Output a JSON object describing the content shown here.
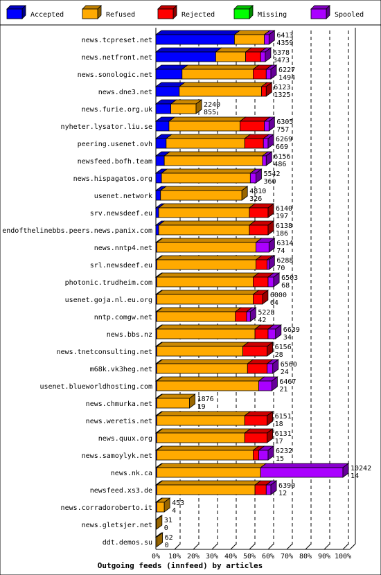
{
  "chart_data": {
    "type": "bar",
    "orientation": "horizontal",
    "stacked": true,
    "xlabel": "Outgoing feeds (innfeed) by articles",
    "xlim": [
      0,
      100
    ],
    "x_ticks": [
      "0%",
      "10%",
      "20%",
      "30%",
      "40%",
      "50%",
      "60%",
      "70%",
      "80%",
      "90%",
      "100%"
    ],
    "legend_position": "top",
    "series": [
      {
        "name": "Accepted",
        "color": "#0000ff"
      },
      {
        "name": "Refused",
        "color": "#ffaa00"
      },
      {
        "name": "Rejected",
        "color": "#ff0000"
      },
      {
        "name": "Missing",
        "color": "#00ff00"
      },
      {
        "name": "Spooled",
        "color": "#aa00ff"
      }
    ],
    "rows": [
      {
        "name": "news.tcpreset.net",
        "total": "6413",
        "accepted": "4359",
        "segs": [
          42,
          16,
          0,
          0,
          2.5
        ]
      },
      {
        "name": "news.netfront.net",
        "total": "6378",
        "accepted": "3473",
        "segs": [
          32,
          16,
          8,
          0,
          2.5
        ]
      },
      {
        "name": "news.sonologic.net",
        "total": "6227",
        "accepted": "1494",
        "segs": [
          14,
          38,
          7,
          0,
          2.5
        ]
      },
      {
        "name": "news.dne3.net",
        "total": "6123",
        "accepted": "1325",
        "segs": [
          12.5,
          44,
          2.5,
          0,
          0
        ]
      },
      {
        "name": "news.furie.org.uk",
        "total": "2240",
        "accepted": "855",
        "segs": [
          8,
          13.5,
          0,
          0,
          0
        ]
      },
      {
        "name": "nyheter.lysator.liu.se",
        "total": "6305",
        "accepted": "757",
        "segs": [
          7,
          38,
          13,
          0,
          2.5
        ]
      },
      {
        "name": "peering.usenet.ovh",
        "total": "6269",
        "accepted": "669",
        "segs": [
          5.5,
          42,
          10,
          0,
          2.5
        ]
      },
      {
        "name": "newsfeed.bofh.team",
        "total": "6156",
        "accepted": "486",
        "segs": [
          4.5,
          52.5,
          0,
          0,
          2
        ]
      },
      {
        "name": "news.hispagatos.org",
        "total": "5542",
        "accepted": "360",
        "segs": [
          3,
          47.5,
          0,
          0,
          3
        ]
      },
      {
        "name": "usenet.network",
        "total": "4810",
        "accepted": "326",
        "segs": [
          2.5,
          43.5,
          0,
          0,
          0
        ]
      },
      {
        "name": "srv.newsdeef.eu",
        "total": "6140",
        "accepted": "197",
        "segs": [
          1.5,
          48.5,
          10,
          0,
          0
        ]
      },
      {
        "name": "endofthelinebbs.peers.news.panix.com",
        "total": "6138",
        "accepted": "186",
        "segs": [
          1.5,
          48.5,
          10,
          0,
          0
        ]
      },
      {
        "name": "news.nntp4.net",
        "total": "6314",
        "accepted": "74",
        "segs": [
          0.5,
          53,
          0,
          0,
          7
        ]
      },
      {
        "name": "srl.newsdeef.eu",
        "total": "6288",
        "accepted": "70",
        "segs": [
          0.5,
          53,
          6,
          0,
          1
        ]
      },
      {
        "name": "photonic.trudheim.com",
        "total": "6503",
        "accepted": "68",
        "segs": [
          0.5,
          51.5,
          8,
          0,
          3
        ]
      },
      {
        "name": "usenet.goja.nl.eu.org",
        "total": "6000",
        "accepted": "64",
        "segs": [
          0.5,
          51.5,
          5,
          0,
          0
        ]
      },
      {
        "name": "nntp.comgw.net",
        "total": "5228",
        "accepted": "42",
        "segs": [
          0.5,
          42,
          6,
          0,
          2
        ]
      },
      {
        "name": "news.bbs.nz",
        "total": "6639",
        "accepted": "34",
        "segs": [
          0.5,
          52.5,
          7,
          0,
          4
        ]
      },
      {
        "name": "news.tnetconsulting.net",
        "total": "6156",
        "accepted": "28",
        "segs": [
          0.5,
          46,
          13,
          0,
          0
        ]
      },
      {
        "name": "m68k.vk3heg.net",
        "total": "6560",
        "accepted": "24",
        "segs": [
          0.5,
          48.5,
          10.5,
          0,
          3
        ]
      },
      {
        "name": "usenet.blueworldhosting.com",
        "total": "6467",
        "accepted": "21",
        "segs": [
          0.5,
          54.5,
          0,
          0,
          7
        ]
      },
      {
        "name": "news.chmurka.net",
        "total": "1876",
        "accepted": "19",
        "segs": [
          0.5,
          17.5,
          0,
          0,
          0
        ]
      },
      {
        "name": "news.weretis.net",
        "total": "6151",
        "accepted": "18",
        "segs": [
          0.5,
          47,
          12,
          0,
          0
        ]
      },
      {
        "name": "news.quux.org",
        "total": "6131",
        "accepted": "17",
        "segs": [
          0.5,
          47,
          12,
          0,
          0
        ]
      },
      {
        "name": "news.samoylyk.net",
        "total": "6232",
        "accepted": "15",
        "segs": [
          0.5,
          51.5,
          3,
          0,
          5
        ]
      },
      {
        "name": "news.nk.ca",
        "total": "10242",
        "accepted": "14",
        "segs": [
          0.5,
          55.5,
          0,
          0,
          44
        ]
      },
      {
        "name": "newsfeed.xs3.de",
        "total": "6390",
        "accepted": "12",
        "segs": [
          0.5,
          52.5,
          6,
          0,
          2.5
        ]
      },
      {
        "name": "news.corradoroberto.it",
        "total": "453",
        "accepted": "4",
        "segs": [
          0.5,
          4,
          0,
          0,
          0
        ]
      },
      {
        "name": "news.gletsjer.net",
        "total": "31",
        "accepted": "0",
        "segs": [
          0,
          0.3,
          0,
          0,
          0
        ]
      },
      {
        "name": "ddt.demos.su",
        "total": "62",
        "accepted": "0",
        "segs": [
          0,
          0.6,
          0,
          0,
          0
        ]
      }
    ]
  }
}
